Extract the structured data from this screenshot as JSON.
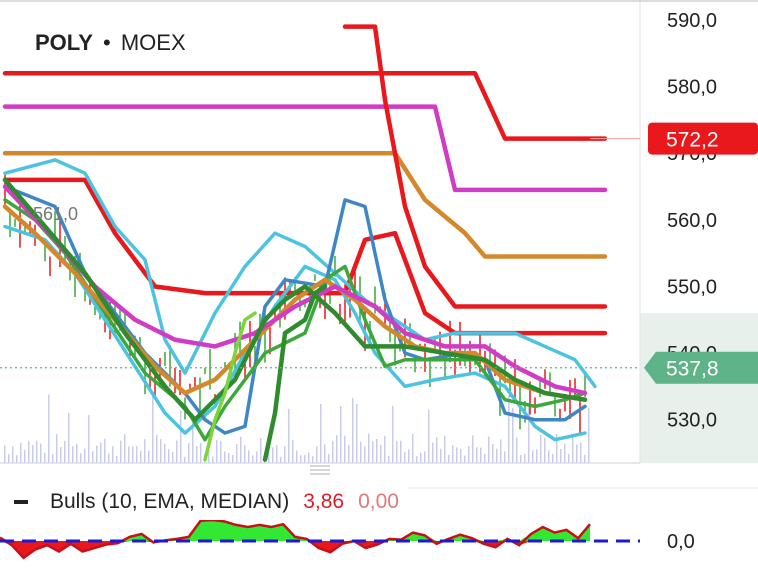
{
  "header": {
    "ticker": "POLY",
    "separator": "•",
    "exchange": "MOEX"
  },
  "price_axis": {
    "labels": [
      "590,0",
      "580,0",
      "570,0",
      "560,0",
      "550,0",
      "540,0",
      "530,0"
    ],
    "last_price": {
      "label": "537,8",
      "value": 537.8,
      "color": "#5fb389"
    },
    "red_level": {
      "label": "572,2",
      "value": 572.2,
      "color": "#e8181c"
    }
  },
  "annotation": {
    "text": "561,0",
    "value": 561.0
  },
  "indicator": {
    "name": "Bulls (10, EMA, MEDIAN)",
    "value": "3,86",
    "value2": "0,00",
    "zero_label": "0,0",
    "value_color": "#d81f26",
    "value2_color": "#e07a7a"
  },
  "colors": {
    "red": "#e8181c",
    "magenta": "#d03cc4",
    "orange": "#d4882c",
    "cyan": "#4cc3e0",
    "steelblue": "#3f87c4",
    "green": "#3aa83a",
    "lightgreen": "#7fd43a",
    "darkgreen": "#2e8b2e",
    "zero_line": "#1a1ad8",
    "bulls_fill": "#33e833"
  },
  "chart_data": {
    "type": "line",
    "ylim": [
      523.5,
      593.0
    ],
    "title": "POLY • MOEX",
    "series": [
      {
        "color": "red",
        "values": [
          [
            0,
            582
          ],
          [
            47,
            582
          ],
          [
            50,
            572.2
          ],
          [
            60,
            572.2
          ]
        ]
      },
      {
        "color": "magenta",
        "values": [
          [
            0,
            577
          ],
          [
            43,
            577
          ],
          [
            45,
            564.5
          ],
          [
            60,
            564.5
          ]
        ]
      },
      {
        "color": "orange",
        "values": [
          [
            0,
            570
          ],
          [
            39,
            570
          ],
          [
            42,
            563
          ],
          [
            46,
            558
          ],
          [
            48,
            554.5
          ],
          [
            60,
            554.5
          ]
        ]
      },
      {
        "color": "red",
        "values": [
          [
            34,
            589
          ],
          [
            37,
            589
          ],
          [
            38,
            578
          ],
          [
            40,
            562
          ],
          [
            42,
            553
          ],
          [
            45,
            547
          ],
          [
            60,
            547
          ]
        ]
      },
      {
        "color": "red",
        "values": [
          [
            0,
            566
          ],
          [
            8,
            566
          ],
          [
            11,
            558
          ],
          [
            15,
            550
          ],
          [
            20,
            549
          ],
          [
            34,
            549
          ],
          [
            36,
            557
          ],
          [
            39,
            558
          ],
          [
            42,
            546
          ],
          [
            45,
            543
          ],
          [
            60,
            543
          ]
        ]
      },
      {
        "color": "cyan",
        "values": [
          [
            0,
            567
          ],
          [
            5,
            569
          ],
          [
            8,
            567
          ],
          [
            11,
            559
          ],
          [
            14,
            554
          ],
          [
            16,
            542
          ],
          [
            18,
            537
          ],
          [
            21,
            546
          ],
          [
            24,
            553
          ],
          [
            27,
            558
          ],
          [
            30,
            556
          ],
          [
            33,
            552
          ],
          [
            36,
            548
          ],
          [
            39,
            545
          ],
          [
            42,
            542
          ],
          [
            45,
            543
          ],
          [
            48,
            543
          ],
          [
            51,
            543
          ],
          [
            54,
            541
          ],
          [
            57,
            539
          ],
          [
            59,
            535
          ]
        ]
      },
      {
        "color": "cyan",
        "values": [
          [
            0,
            559
          ],
          [
            4,
            557
          ],
          [
            7,
            552
          ],
          [
            10,
            545
          ],
          [
            13,
            538
          ],
          [
            16,
            531
          ],
          [
            18,
            528
          ],
          [
            21,
            532
          ],
          [
            24,
            540
          ],
          [
            27,
            547
          ],
          [
            30,
            553
          ],
          [
            33,
            551
          ],
          [
            35,
            546
          ],
          [
            37,
            540
          ],
          [
            40,
            535
          ],
          [
            43,
            536
          ],
          [
            47,
            537
          ],
          [
            50,
            535
          ],
          [
            53,
            529
          ],
          [
            55,
            527
          ],
          [
            58,
            528
          ]
        ]
      },
      {
        "color": "steelblue",
        "values": [
          [
            0,
            565
          ],
          [
            5,
            562
          ],
          [
            8,
            552
          ],
          [
            11,
            546
          ],
          [
            14,
            540
          ],
          [
            18,
            534
          ],
          [
            20,
            530
          ],
          [
            22,
            528
          ],
          [
            24,
            529
          ],
          [
            26,
            547
          ],
          [
            28,
            551
          ],
          [
            32,
            550
          ],
          [
            34,
            563
          ],
          [
            36,
            562
          ],
          [
            38,
            548
          ],
          [
            40,
            540
          ],
          [
            42,
            539
          ],
          [
            46,
            540
          ],
          [
            48,
            539
          ],
          [
            50,
            531
          ],
          [
            53,
            530
          ],
          [
            56,
            530
          ],
          [
            58,
            532
          ]
        ]
      },
      {
        "color": "green",
        "values": [
          [
            0,
            563
          ],
          [
            3,
            560
          ],
          [
            6,
            555
          ],
          [
            10,
            546
          ],
          [
            14,
            537
          ],
          [
            18,
            532
          ],
          [
            20,
            527
          ],
          [
            22,
            532
          ],
          [
            26,
            540
          ],
          [
            30,
            543
          ],
          [
            32,
            551
          ],
          [
            34,
            553
          ],
          [
            36,
            545
          ],
          [
            38,
            538
          ],
          [
            40,
            539
          ],
          [
            43,
            539
          ],
          [
            47,
            539
          ],
          [
            50,
            533
          ],
          [
            53,
            532
          ],
          [
            56,
            533
          ],
          [
            58,
            534
          ]
        ]
      },
      {
        "color": "orange",
        "values": [
          [
            0,
            562
          ],
          [
            3,
            558
          ],
          [
            7,
            552
          ],
          [
            11,
            545
          ],
          [
            15,
            538
          ],
          [
            18,
            534
          ],
          [
            21,
            536
          ],
          [
            25,
            542
          ],
          [
            29,
            548
          ],
          [
            32,
            551
          ],
          [
            35,
            548
          ],
          [
            38,
            544
          ],
          [
            41,
            541
          ],
          [
            44,
            540
          ],
          [
            47,
            540
          ],
          [
            50,
            536
          ],
          [
            54,
            534
          ],
          [
            58,
            533
          ]
        ]
      },
      {
        "color": "magenta",
        "values": [
          [
            0,
            565
          ],
          [
            5,
            557
          ],
          [
            9,
            550
          ],
          [
            13,
            545
          ],
          [
            17,
            542
          ],
          [
            21,
            541
          ],
          [
            25,
            543
          ],
          [
            29,
            547
          ],
          [
            33,
            550
          ],
          [
            37,
            547
          ],
          [
            40,
            543
          ],
          [
            44,
            541
          ],
          [
            48,
            541
          ],
          [
            51,
            538
          ],
          [
            55,
            535
          ],
          [
            58,
            534
          ]
        ]
      },
      {
        "color": "darkgreen",
        "values": [
          [
            0,
            566
          ],
          [
            4,
            559
          ],
          [
            8,
            552
          ],
          [
            12,
            543
          ],
          [
            16,
            535
          ],
          [
            19,
            530
          ],
          [
            23,
            536
          ],
          [
            26,
            545
          ],
          [
            28,
            548
          ],
          [
            30,
            550
          ],
          [
            33,
            546
          ],
          [
            36,
            541
          ],
          [
            40,
            541
          ],
          [
            44,
            540
          ],
          [
            48,
            539
          ],
          [
            51,
            536
          ],
          [
            54,
            534
          ],
          [
            58,
            533
          ]
        ]
      },
      {
        "color": "lightgreen",
        "values": [
          [
            20,
            524
          ],
          [
            21,
            530
          ],
          [
            22,
            534
          ],
          [
            23,
            540
          ],
          [
            24,
            545
          ],
          [
            25,
            546
          ]
        ]
      },
      {
        "color": "darkgreen",
        "values": [
          [
            26,
            524
          ],
          [
            27,
            531
          ],
          [
            28,
            543
          ],
          [
            30,
            545
          ],
          [
            31,
            549
          ],
          [
            32,
            550
          ]
        ]
      }
    ],
    "bulls_power": [
      0.5,
      -0.6,
      -2.4,
      -1.2,
      -0.6,
      -1.5,
      -0.4,
      -1.5,
      -1.0,
      -0.5,
      -0.3,
      0.6,
      1.0,
      -0.2,
      0.1,
      0.3,
      0.6,
      2.9,
      3.0,
      2.8,
      2.3,
      2.0,
      2.3,
      2.0,
      2.4,
      0.6,
      0.3,
      -1.0,
      -1.6,
      -0.4,
      0.0,
      -1.0,
      -0.5,
      0.3,
      0.2,
      1.2,
      0.8,
      -0.4,
      0.3,
      0.9,
      0.4,
      -0.4,
      -0.9,
      0.3,
      -0.6,
      1.0,
      2.0,
      1.2,
      1.6,
      0.4,
      2.4
    ]
  }
}
